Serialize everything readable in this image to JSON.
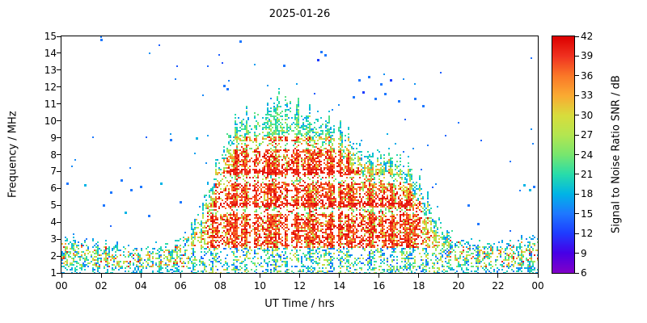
{
  "title": "2025-01-26",
  "axes": {
    "xlabel": "UT Time / hrs",
    "ylabel": "Frequency / MHz",
    "x_tick_labels": [
      "00",
      "02",
      "04",
      "06",
      "08",
      "10",
      "12",
      "14",
      "16",
      "18",
      "20",
      "22",
      "00"
    ],
    "x_tick_hours": [
      0,
      2,
      4,
      6,
      8,
      10,
      12,
      14,
      16,
      18,
      20,
      22,
      24
    ],
    "y_tick_values": [
      1,
      2,
      3,
      4,
      5,
      6,
      7,
      8,
      9,
      10,
      11,
      12,
      13,
      14,
      15
    ],
    "colorbar": {
      "label": "Signal to Noise Ratio SNR / dB",
      "tick_values": [
        6,
        9,
        12,
        15,
        18,
        21,
        24,
        27,
        30,
        33,
        36,
        39,
        42
      ],
      "min": 6,
      "max": 42
    }
  },
  "chart_data": {
    "type": "heatmap",
    "title": "2025-01-26",
    "x_label": "UT Time / hrs",
    "x_unit": "hours UT",
    "x_range": [
      0,
      24
    ],
    "y_label": "Frequency / MHz",
    "y_range": [
      1,
      15
    ],
    "value_label": "Signal to Noise Ratio SNR / dB",
    "value_range": [
      6,
      42
    ],
    "colormap": [
      [
        6,
        "#8000c8"
      ],
      [
        9,
        "#4600e6"
      ],
      [
        12,
        "#1e3cff"
      ],
      [
        15,
        "#1e78ff"
      ],
      [
        18,
        "#00b4e6"
      ],
      [
        21,
        "#28dcaa"
      ],
      [
        24,
        "#78e66e"
      ],
      [
        27,
        "#b4e650"
      ],
      [
        30,
        "#d8dc3c"
      ],
      [
        33,
        "#faaa32"
      ],
      [
        36,
        "#fa7828"
      ],
      [
        39,
        "#f03220"
      ],
      [
        42,
        "#dc0000"
      ]
    ],
    "envelope_hour_step": 0.5,
    "envelope_max_freq_mhz": [
      3.0,
      3.0,
      2.9,
      2.8,
      2.7,
      2.6,
      2.6,
      2.5,
      2.5,
      2.5,
      2.6,
      2.7,
      3.0,
      3.8,
      5.0,
      6.5,
      8.0,
      9.3,
      10.3,
      10.0,
      10.4,
      10.8,
      11.3,
      10.9,
      10.5,
      10.3,
      10.0,
      10.0,
      9.6,
      9.0,
      8.3,
      7.9,
      8.0,
      7.8,
      7.6,
      7.2,
      6.2,
      5.0,
      4.0,
      3.4,
      3.1,
      2.9,
      2.8,
      2.8,
      2.8,
      2.8,
      2.9,
      3.0,
      3.2
    ],
    "min_freq_mhz": 1.0,
    "night_band": {
      "hours": [
        [
          0,
          6
        ],
        [
          19.5,
          24
        ]
      ],
      "freq_range_mhz": [
        1,
        3.2
      ]
    },
    "day_core": {
      "hours": [
        7.5,
        18
      ],
      "freq_range_mhz": [
        2.5,
        9.5
      ],
      "typical_snr_db": [
        33,
        42
      ]
    },
    "edge_snr_db": [
      15,
      24
    ],
    "enhanced_rows_mhz": [
      5.05,
      7.0
    ],
    "gap_rows_mhz": [
      [
        4.45,
        4.85
      ],
      [
        6.35,
        6.75
      ],
      [
        8.35,
        8.8
      ]
    ],
    "dropout_times_hr": [
      [
        9.5,
        9.68
      ],
      [
        11.33,
        11.5
      ],
      [
        13.72,
        13.88
      ]
    ],
    "outliers_t_f_snr": [
      [
        0.3,
        6.3,
        15
      ],
      [
        1.2,
        6.2,
        18
      ],
      [
        2.0,
        14.8,
        15
      ],
      [
        2.1,
        5.0,
        15
      ],
      [
        2.5,
        5.8,
        15
      ],
      [
        3.0,
        6.5,
        15
      ],
      [
        3.2,
        4.6,
        18
      ],
      [
        3.5,
        5.9,
        15
      ],
      [
        4.0,
        6.1,
        15
      ],
      [
        4.4,
        4.4,
        15
      ],
      [
        5.0,
        6.3,
        18
      ],
      [
        5.5,
        8.9,
        15
      ],
      [
        6.0,
        5.2,
        15
      ],
      [
        6.8,
        9.0,
        18
      ],
      [
        8.2,
        12.1,
        15
      ],
      [
        8.35,
        11.9,
        15
      ],
      [
        9.0,
        14.7,
        15
      ],
      [
        11.2,
        13.3,
        15
      ],
      [
        12.9,
        13.6,
        12
      ],
      [
        13.1,
        14.1,
        15
      ],
      [
        13.3,
        13.9,
        15
      ],
      [
        14.7,
        11.4,
        15
      ],
      [
        15.0,
        12.4,
        15
      ],
      [
        15.2,
        11.7,
        12
      ],
      [
        15.5,
        12.6,
        15
      ],
      [
        15.8,
        11.3,
        15
      ],
      [
        16.1,
        12.2,
        15
      ],
      [
        16.3,
        11.6,
        15
      ],
      [
        16.6,
        12.4,
        12
      ],
      [
        17.0,
        11.2,
        15
      ],
      [
        17.8,
        11.3,
        15
      ],
      [
        18.2,
        10.9,
        15
      ],
      [
        20.5,
        5.0,
        15
      ],
      [
        21.0,
        3.9,
        15
      ],
      [
        23.3,
        6.2,
        18
      ],
      [
        23.6,
        5.9,
        18
      ],
      [
        23.8,
        6.1,
        15
      ]
    ]
  }
}
